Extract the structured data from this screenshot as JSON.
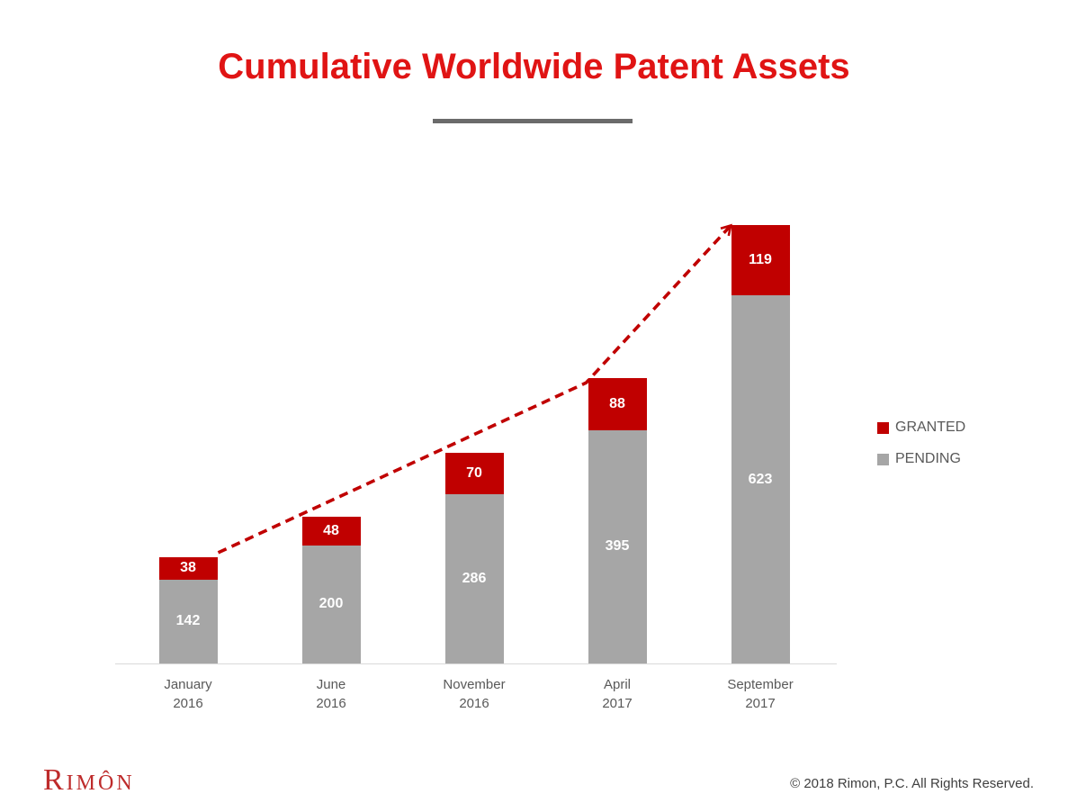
{
  "title": "Cumulative Worldwide Patent Assets",
  "chart_data": {
    "type": "bar",
    "stacked": true,
    "title": "Cumulative Worldwide Patent Assets",
    "categories": [
      {
        "month": "January",
        "year": "2016"
      },
      {
        "month": "June",
        "year": "2016"
      },
      {
        "month": "November",
        "year": "2016"
      },
      {
        "month": "April",
        "year": "2017"
      },
      {
        "month": "September",
        "year": "2017"
      }
    ],
    "series": [
      {
        "name": "GRANTED",
        "color": "#C00000",
        "values": [
          38,
          48,
          70,
          88,
          119
        ]
      },
      {
        "name": "PENDING",
        "color": "#A6A6A6",
        "values": [
          142,
          200,
          286,
          395,
          623
        ]
      }
    ],
    "totals": [
      180,
      248,
      356,
      483,
      742
    ],
    "xlabel": "",
    "ylabel": "",
    "grid": false,
    "legend_position": "right",
    "annotations": [
      "dashed red trend arrow rising from first bar to last bar"
    ]
  },
  "legend": {
    "granted_label": "GRANTED",
    "pending_label": "PENDING"
  },
  "footer": {
    "logo": "Rimôn",
    "copyright": "© 2018 Rimon, P.C. All Rights Reserved."
  },
  "colors": {
    "title": "#E01414",
    "granted": "#C00000",
    "pending": "#A6A6A6",
    "trend_line": "#C00000",
    "divider": "#6B6B6B",
    "axis_line": "#D9D9D9",
    "category_text": "#595959",
    "legend_text": "#595959",
    "data_label_text": "#FFFFFF",
    "logo_text": "#BE2B2B",
    "copyright_text": "#3F3F3F"
  }
}
